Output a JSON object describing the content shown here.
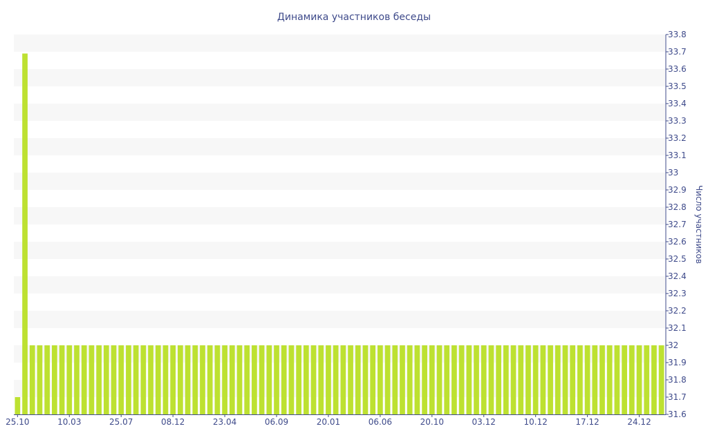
{
  "chart_data": {
    "type": "bar",
    "title": "Динамика участников беседы",
    "ylabel": "Число участников",
    "ylim": [
      31.6,
      33.8
    ],
    "y_ticks": [
      31.6,
      31.7,
      31.8,
      31.9,
      32,
      32.1,
      32.2,
      32.3,
      32.4,
      32.5,
      32.6,
      32.7,
      32.8,
      32.9,
      33,
      33.1,
      33.2,
      33.3,
      33.4,
      33.5,
      33.6,
      33.7,
      33.8
    ],
    "x_tick_labels": [
      "25.10",
      "10.03",
      "25.07",
      "08.12",
      "23.04",
      "06.09",
      "20.01",
      "06.06",
      "20.10",
      "03.12",
      "10.12",
      "17.12",
      "24.12"
    ],
    "values": [
      31.7,
      33.69,
      32,
      32,
      32,
      32,
      32,
      32,
      32,
      32,
      32,
      32,
      32,
      32,
      32,
      32,
      32,
      32,
      32,
      32,
      32,
      32,
      32,
      32,
      32,
      32,
      32,
      32,
      32,
      32,
      32,
      32,
      32,
      32,
      32,
      32,
      32,
      32,
      32,
      32,
      32,
      32,
      32,
      32,
      32,
      32,
      32,
      32,
      32,
      32,
      32,
      32,
      32,
      32,
      32,
      32,
      32,
      32,
      32,
      32,
      32,
      32,
      32,
      32,
      32,
      32,
      32,
      32,
      32,
      32,
      32,
      32,
      32,
      32,
      32,
      32,
      32,
      32,
      32,
      32,
      32,
      32,
      32,
      32,
      32,
      32,
      32,
      32
    ],
    "grid": true,
    "axis_position": "right",
    "bar_color": "#bde131",
    "band_color": "#f7f7f7",
    "text_color": "#3e4a8a"
  }
}
